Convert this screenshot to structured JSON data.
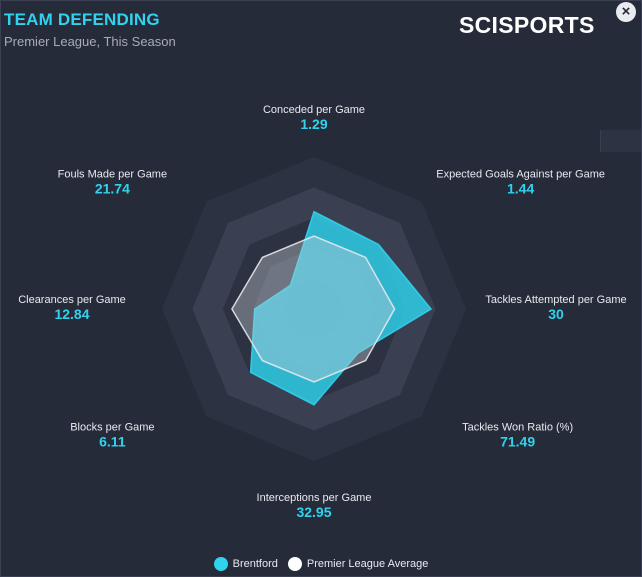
{
  "header": {
    "title": "TEAM DEFENDING",
    "subtitle": "Premier League, This Season",
    "brand": "SCISPORTS",
    "close_glyph": "×"
  },
  "colors": {
    "accent": "#2fd3ee",
    "team_fill": "#2fd3ee",
    "average_fill": "#c9ccd4",
    "ring_dark": "#2c3242",
    "ring_light": "#3a4051"
  },
  "chart_data": {
    "type": "radar",
    "rings": 5,
    "axes": [
      {
        "name": "Conceded per Game",
        "value": "1.29"
      },
      {
        "name": "Expected Goals Against per Game",
        "value": "1.44"
      },
      {
        "name": "Tackles Attempted per Game",
        "value": "30"
      },
      {
        "name": "Tackles Won Ratio (%)",
        "value": "71.49"
      },
      {
        "name": "Interceptions per Game",
        "value": "32.95"
      },
      {
        "name": "Blocks per Game",
        "value": "6.11"
      },
      {
        "name": "Clearances per Game",
        "value": "12.84"
      },
      {
        "name": "Fouls Made per Game",
        "value": "21.74"
      }
    ],
    "series": [
      {
        "name": "Brentford",
        "color": "#2fd3ee",
        "normalized": [
          0.64,
          0.6,
          0.77,
          0.41,
          0.63,
          0.59,
          0.39,
          0.22
        ]
      },
      {
        "name": "Premier League Average",
        "color": "#ffffff",
        "normalized": [
          0.48,
          0.48,
          0.53,
          0.48,
          0.48,
          0.48,
          0.54,
          0.48
        ]
      }
    ],
    "legend": "bottom-center"
  }
}
